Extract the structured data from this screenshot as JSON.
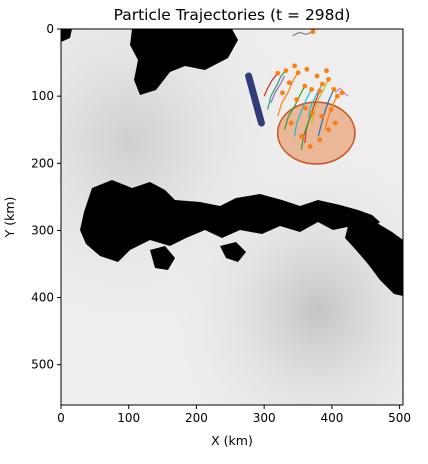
{
  "chart_data": {
    "type": "scatter",
    "title": "Particle Trajectories (t = 298d)",
    "xlabel": "X (km)",
    "ylabel": "Y (km)",
    "xlim": [
      0,
      505
    ],
    "ylim": [
      560,
      0
    ],
    "x_ticks": [
      "0",
      "100",
      "200",
      "300",
      "400",
      "500"
    ],
    "x_tick_values": [
      0,
      100,
      200,
      300,
      400,
      500
    ],
    "y_ticks": [
      "0",
      "100",
      "200",
      "300",
      "400",
      "500"
    ],
    "y_tick_values": [
      0,
      100,
      200,
      300,
      400,
      500
    ],
    "y_axis_inverted": true,
    "grid": false,
    "background": "grayscale field with black land masses",
    "region_ellipse": {
      "center": [
        377,
        155
      ],
      "rx": 57,
      "ry": 46,
      "fill": "#e8a47c",
      "stroke": "#c8582a"
    },
    "source_bar": {
      "points": [
        [
          277,
          70
        ],
        [
          296,
          140
        ]
      ],
      "color": "#1f2a6b"
    },
    "trajectories": [
      {
        "color": "#1fa774",
        "points": [
          [
            305,
            120
          ],
          [
            310,
            100
          ],
          [
            318,
            85
          ],
          [
            325,
            70
          ],
          [
            332,
            62
          ]
        ]
      },
      {
        "color": "#ff7f0e",
        "points": [
          [
            320,
            130
          ],
          [
            326,
            110
          ],
          [
            335,
            95
          ],
          [
            342,
            78
          ],
          [
            350,
            65
          ]
        ]
      },
      {
        "color": "#2ca02c",
        "points": [
          [
            330,
            150
          ],
          [
            336,
            130
          ],
          [
            345,
            115
          ],
          [
            352,
            100
          ],
          [
            360,
            85
          ]
        ]
      },
      {
        "color": "#17becf",
        "points": [
          [
            345,
            160
          ],
          [
            348,
            140
          ],
          [
            355,
            122
          ],
          [
            362,
            105
          ],
          [
            370,
            90
          ]
        ]
      },
      {
        "color": "#d62728",
        "points": [
          [
            360,
            170
          ],
          [
            362,
            150
          ],
          [
            368,
            130
          ],
          [
            375,
            110
          ],
          [
            382,
            92
          ]
        ]
      },
      {
        "color": "#bcbd22",
        "points": [
          [
            370,
            140
          ],
          [
            375,
            120
          ],
          [
            380,
            105
          ],
          [
            388,
            90
          ],
          [
            395,
            75
          ]
        ]
      },
      {
        "color": "#1f77b4",
        "points": [
          [
            380,
            160
          ],
          [
            385,
            140
          ],
          [
            390,
            122
          ],
          [
            396,
            105
          ],
          [
            403,
            90
          ]
        ]
      },
      {
        "color": "#9467bd",
        "points": [
          [
            310,
            110
          ],
          [
            316,
            95
          ],
          [
            324,
            82
          ],
          [
            330,
            70
          ]
        ]
      },
      {
        "color": "#ff7f0e",
        "points": [
          [
            390,
            150
          ],
          [
            395,
            130
          ],
          [
            400,
            115
          ],
          [
            408,
            100
          ]
        ]
      },
      {
        "color": "#e377c2",
        "points": [
          [
            405,
            95
          ],
          [
            412,
            88
          ],
          [
            418,
            95
          ],
          [
            424,
            100
          ]
        ]
      },
      {
        "color": "#7f7f7f",
        "points": [
          [
            342,
            10
          ],
          [
            352,
            5
          ],
          [
            362,
            8
          ],
          [
            372,
            4
          ]
        ]
      },
      {
        "color": "#2ca02c",
        "points": [
          [
            355,
            180
          ],
          [
            358,
            160
          ],
          [
            364,
            142
          ],
          [
            371,
            125
          ]
        ]
      },
      {
        "color": "#17becf",
        "points": [
          [
            365,
            130
          ],
          [
            370,
            112
          ],
          [
            378,
            96
          ],
          [
            386,
            82
          ]
        ]
      },
      {
        "color": "#d62728",
        "points": [
          [
            300,
            100
          ],
          [
            305,
            88
          ],
          [
            312,
            76
          ],
          [
            320,
            66
          ]
        ]
      }
    ],
    "particle_color": "#ff7f0e",
    "particles": [
      [
        332,
        62
      ],
      [
        350,
        65
      ],
      [
        360,
        85
      ],
      [
        370,
        90
      ],
      [
        382,
        92
      ],
      [
        395,
        75
      ],
      [
        403,
        90
      ],
      [
        408,
        100
      ],
      [
        372,
        4
      ],
      [
        386,
        82
      ],
      [
        371,
        125
      ],
      [
        320,
        66
      ],
      [
        345,
        55
      ],
      [
        363,
        60
      ],
      [
        378,
        70
      ],
      [
        392,
        62
      ],
      [
        340,
        140
      ],
      [
        355,
        160
      ],
      [
        368,
        175
      ],
      [
        382,
        165
      ],
      [
        395,
        150
      ],
      [
        405,
        140
      ],
      [
        348,
        105
      ],
      [
        361,
        118
      ],
      [
        327,
        95
      ],
      [
        337,
        80
      ],
      [
        415,
        95
      ],
      [
        399,
        120
      ],
      [
        385,
        130
      ]
    ]
  }
}
